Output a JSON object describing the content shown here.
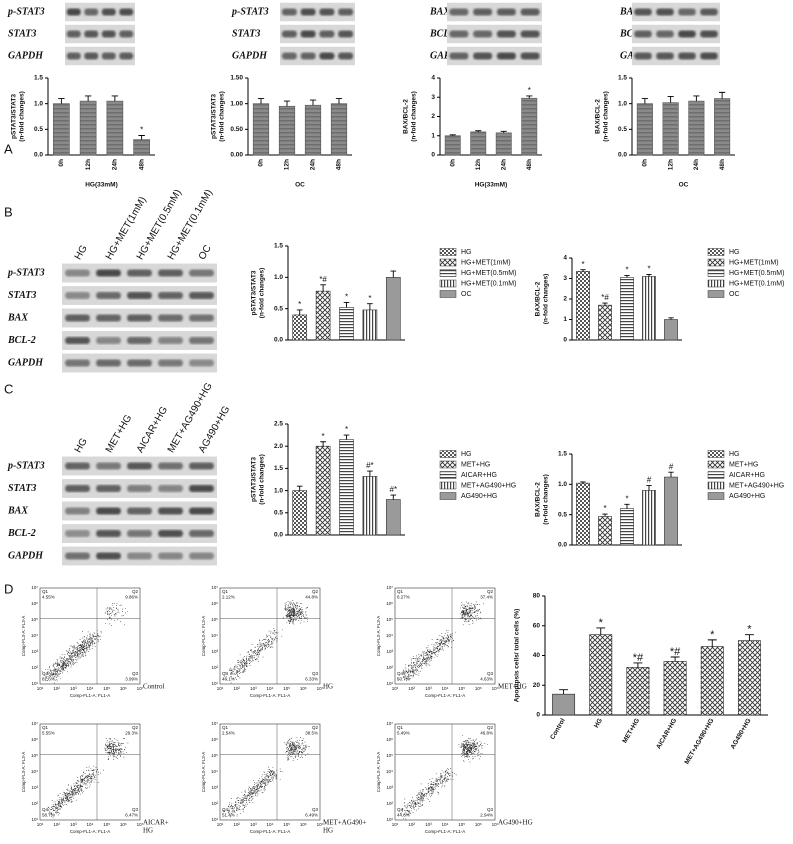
{
  "panel_letters": [
    "A",
    "B",
    "C",
    "D"
  ],
  "panel_a_blots": [
    {
      "rows": [
        "p-STAT3",
        "STAT3",
        "GAPDH"
      ]
    },
    {
      "rows": [
        "p-STAT3",
        "STAT3",
        "GAPDH"
      ]
    },
    {
      "rows": [
        "BAX",
        "BCL-2",
        "GAPDH"
      ]
    },
    {
      "rows": [
        "BAX",
        "BCL-2",
        "GAPDH"
      ]
    }
  ],
  "panel_b_blot": {
    "lanes": [
      "HG",
      "HG+MET(1mM)",
      "HG+MET(0.5mM)",
      "HG+MET(0.1mM)",
      "OC"
    ],
    "rows": [
      "p-STAT3",
      "STAT3",
      "BAX",
      "BCL-2",
      "GAPDH"
    ]
  },
  "panel_c_blot": {
    "lanes": [
      "HG",
      "MET+HG",
      "AICAR+HG",
      "MET+AG490+HG",
      "AG490+HG"
    ],
    "rows": [
      "p-STAT3",
      "STAT3",
      "BAX",
      "BCL-2",
      "GAPDH"
    ]
  },
  "flow_plots": {
    "x_label": "Comp-FL1-A: FL1-A",
    "y_label": "Comp-FL3-A: FL3-A",
    "log_ticks": [
      "10¹",
      "10²",
      "10³",
      "10⁴",
      "10⁵",
      "10⁶",
      "10⁷"
    ],
    "quadrant_names": [
      "Q1",
      "Q2",
      "Q3",
      "Q4"
    ],
    "plots": [
      {
        "condition": [
          "Control"
        ],
        "percents": [
          "4.55%",
          "9.86%",
          "3.99%",
          "81.6%"
        ]
      },
      {
        "condition": [
          "HG"
        ],
        "percents": [
          "2.12%",
          "44.8%",
          "6.33%",
          "46.1%"
        ]
      },
      {
        "condition": [
          "MET+HG"
        ],
        "percents": [
          "6.27%",
          "37.4%",
          "4.63%",
          "50.7%"
        ]
      },
      {
        "condition": [
          "AICAR+",
          "HG"
        ],
        "percents": [
          "5.55%",
          "29.3%",
          "6.47%",
          "58.7%"
        ]
      },
      {
        "condition": [
          "MET+AG490+",
          "HG"
        ],
        "percents": [
          "2.54%",
          "38.5%",
          "6.49%",
          "51.4%"
        ]
      },
      {
        "condition": [
          "AG490+HG"
        ],
        "percents": [
          "5.49%",
          "46.8%",
          "2.94%",
          "44.6%"
        ]
      }
    ]
  },
  "chart_data": [
    {
      "type": "bar",
      "ylabel_lines": [
        "pSTAT3/STAT3",
        "(n-fold changes)"
      ],
      "xlabel": "HG(33mM)",
      "categories": [
        "0h",
        "12h",
        "24h",
        "48h"
      ],
      "values": [
        1.0,
        1.05,
        1.05,
        0.3
      ],
      "errors": [
        0.1,
        0.1,
        0.1,
        0.08
      ],
      "annotations": [
        null,
        null,
        null,
        "*"
      ],
      "ylim": [
        0,
        1.5
      ],
      "yticks": [
        {
          "value": 0,
          "label": "0.0"
        },
        0.5,
        {
          "value": 1,
          "label": "1.0"
        },
        1.5
      ],
      "color": "#555555",
      "category_axis_labels": true
    },
    {
      "type": "bar",
      "ylabel_lines": [
        "pSTAT3/STAT3",
        "(n-fold changes)"
      ],
      "xlabel": "OC",
      "categories": [
        "0h",
        "12h",
        "24h",
        "48h"
      ],
      "values": [
        1.0,
        0.95,
        0.97,
        1.0
      ],
      "errors": [
        0.1,
        0.1,
        0.1,
        0.1
      ],
      "annotations": [
        null,
        null,
        null,
        null
      ],
      "ylim": [
        0,
        1.5
      ],
      "yticks": [
        {
          "value": 0,
          "label": "0.00"
        },
        {
          "value": 0.5,
          "label": "0.50"
        },
        {
          "value": 1,
          "label": "1.00"
        },
        {
          "value": 1.5,
          "label": "1.50"
        }
      ],
      "color": "#555555",
      "category_axis_labels": true
    },
    {
      "type": "bar",
      "ylabel_lines": [
        "BAX/BCL-2",
        "(n-fold changes)"
      ],
      "xlabel": "HG(33mM)",
      "categories": [
        "0h",
        "12h",
        "24h",
        "48h"
      ],
      "values": [
        1.0,
        1.2,
        1.15,
        2.95
      ],
      "errors": [
        0.05,
        0.06,
        0.08,
        0.12
      ],
      "annotations": [
        null,
        null,
        null,
        "*"
      ],
      "ylim": [
        0,
        4
      ],
      "yticks": [
        0,
        1,
        2,
        3,
        4
      ],
      "color": "#555555",
      "category_axis_labels": true
    },
    {
      "type": "bar",
      "ylabel_lines": [
        "BAX/BCL-2",
        "(n-fold changes)"
      ],
      "xlabel": "OC",
      "categories": [
        "0h",
        "12h",
        "24h",
        "48h"
      ],
      "values": [
        1.0,
        1.02,
        1.05,
        1.1
      ],
      "errors": [
        0.1,
        0.12,
        0.1,
        0.12
      ],
      "annotations": [
        null,
        null,
        null,
        null
      ],
      "ylim": [
        0,
        1.5
      ],
      "yticks": [
        {
          "value": 0,
          "label": "0.0"
        },
        0.5,
        {
          "value": 1,
          "label": "1.0"
        },
        1.5
      ],
      "color": "#555555",
      "category_axis_labels": true
    },
    {
      "type": "bar",
      "ylabel_lines": [
        "pSTAT3/STAT3",
        "(n-fold changes)"
      ],
      "categories": [
        "HG",
        "HG+MET(1mM)",
        "HG+MET(0.5mM)",
        "HG+MET(0.1mM)",
        "OC"
      ],
      "values": [
        0.4,
        0.78,
        0.52,
        0.48,
        1.0
      ],
      "errors": [
        0.08,
        0.1,
        0.08,
        0.1,
        0.1
      ],
      "annotations": [
        "*",
        "*#",
        "*",
        "*",
        null
      ],
      "ylim": [
        0,
        1.5
      ],
      "yticks": [
        {
          "value": 0,
          "label": "0.0"
        },
        0.5,
        {
          "value": 1,
          "label": "1.0"
        },
        1.5
      ],
      "color": "#333333",
      "legend": "right"
    },
    {
      "type": "bar",
      "ylabel_lines": [
        "BAX/BCL-2",
        "(n-fold changes)"
      ],
      "categories": [
        "HG",
        "HG+MET(1mM)",
        "HG+MET(0.5mM)",
        "HG+MET(0.1mM)",
        "OC"
      ],
      "values": [
        3.35,
        1.7,
        3.05,
        3.1,
        1.0
      ],
      "errors": [
        0.08,
        0.1,
        0.1,
        0.1,
        0.08
      ],
      "annotations": [
        "*",
        "*#",
        "*",
        "*",
        null
      ],
      "ylim": [
        0,
        4
      ],
      "yticks": [
        0,
        1,
        2,
        3,
        4
      ],
      "color": "#333333",
      "legend": "right"
    },
    {
      "type": "bar",
      "ylabel_lines": [
        "pSTAT3/STAT3",
        "(n-fold changes)"
      ],
      "categories": [
        "HG",
        "MET+HG",
        "AICAR+HG",
        "MET+AG490+HG",
        "AG490+HG"
      ],
      "values": [
        1.0,
        2.0,
        2.15,
        1.32,
        0.8
      ],
      "errors": [
        0.1,
        0.1,
        0.1,
        0.12,
        0.1
      ],
      "annotations": [
        null,
        "*",
        "*",
        "#*",
        "#*"
      ],
      "ylim": [
        0,
        2.5
      ],
      "yticks": [
        {
          "value": 0,
          "label": "0.0"
        },
        0.5,
        {
          "value": 1,
          "label": "1.0"
        },
        1.5,
        {
          "value": 2,
          "label": "2.0"
        },
        2.5
      ],
      "color": "#333333",
      "legend": "right"
    },
    {
      "type": "bar",
      "ylabel_lines": [
        "BAX/BCL-2",
        "(n-fold changes)"
      ],
      "categories": [
        "HG",
        "MET+HG",
        "AICAR+HG",
        "MET+AG490+HG",
        "AG490+HG"
      ],
      "values": [
        1.02,
        0.47,
        0.6,
        0.9,
        1.12
      ],
      "errors": [
        0.02,
        0.04,
        0.07,
        0.08,
        0.08
      ],
      "annotations": [
        null,
        "*",
        "*",
        "#",
        "#"
      ],
      "ylim": [
        0,
        1.5
      ],
      "yticks": [
        {
          "value": 0,
          "label": "0.0"
        },
        0.5,
        {
          "value": 1,
          "label": "1.0"
        },
        1.5
      ],
      "color": "#333333",
      "legend": "right"
    },
    {
      "type": "bar",
      "ylabel_lines": [
        "Apoptpsis cells/ total cells (%)"
      ],
      "categories": [
        "Control",
        "HG",
        "MET+HG",
        "AICAR+HG",
        "MET+AG490+HG",
        "AG490+HG"
      ],
      "values": [
        14,
        54,
        32,
        36,
        46,
        50
      ],
      "errors": [
        3,
        4.5,
        3,
        3,
        4.5,
        4
      ],
      "annotations": [
        null,
        "*",
        "*#",
        "*#",
        "*",
        "*"
      ],
      "ylim": [
        0,
        80
      ],
      "yticks": [
        0,
        20,
        40,
        60,
        80
      ],
      "color": "#222222",
      "category_axis_labels": true
    }
  ]
}
